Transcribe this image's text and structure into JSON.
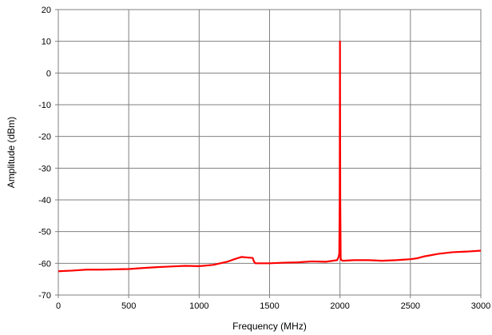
{
  "chart_data": {
    "type": "line",
    "title": "",
    "xlabel": "Frequency (MHz)",
    "ylabel": "Amplitude (dBm)",
    "xlim": [
      0,
      3000
    ],
    "ylim": [
      -70,
      20
    ],
    "x_ticks": [
      0,
      500,
      1000,
      1500,
      2000,
      2500,
      3000
    ],
    "y_ticks": [
      20,
      10,
      0,
      -10,
      -20,
      -30,
      -40,
      -50,
      -60,
      -70
    ],
    "grid": true,
    "legend": "none",
    "series": [
      {
        "color": "#ff0000",
        "x": [
          0,
          100,
          200,
          300,
          400,
          500,
          600,
          700,
          800,
          900,
          1000,
          1100,
          1150,
          1200,
          1250,
          1300,
          1350,
          1380,
          1390,
          1400,
          1450,
          1500,
          1600,
          1700,
          1800,
          1900,
          1980,
          1990,
          1995,
          1998,
          2000,
          2002,
          2005,
          2010,
          2020,
          2100,
          2200,
          2300,
          2400,
          2500,
          2550,
          2600,
          2700,
          2800,
          2900,
          3000
        ],
        "y": [
          -62.5,
          -62.3,
          -62.0,
          -62.0,
          -61.9,
          -61.8,
          -61.5,
          -61.2,
          -61.0,
          -60.8,
          -60.9,
          -60.5,
          -60.0,
          -59.5,
          -58.7,
          -58.0,
          -58.2,
          -58.3,
          -59.5,
          -60.0,
          -60.0,
          -60.0,
          -59.8,
          -59.7,
          -59.4,
          -59.5,
          -59.0,
          -58.0,
          -57.0,
          -40.0,
          10.0,
          -40.0,
          -58.5,
          -59.0,
          -59.2,
          -59.0,
          -59.0,
          -59.2,
          -59.0,
          -58.7,
          -58.4,
          -57.8,
          -57.0,
          -56.5,
          -56.3,
          -56.0
        ]
      }
    ]
  }
}
